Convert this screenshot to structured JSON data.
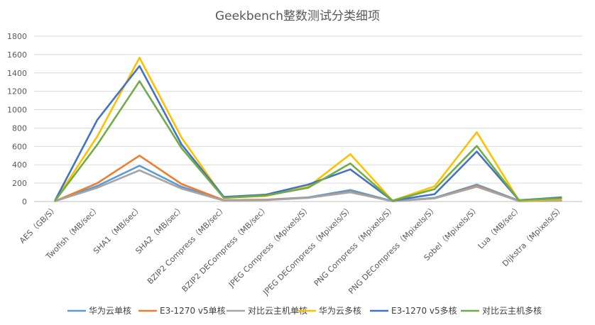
{
  "chart_data": {
    "type": "line",
    "title": "Geekbench整数测试分类细项",
    "categories": [
      "AES（GB/S）",
      "Twofish（MB/sec）",
      "SHA1（MB/sec）",
      "SHA2（MB/sec）",
      "BZIP2 Compress（MB/sec）",
      "BZIP2 DECompress（MB/sec）",
      "JPEG Compress（Mpixels/S）",
      "JPEG DECompress（Mpixels/S）",
      "PNG Compress（Mpixels/S）",
      "PNG DECompress（Mpixels/S）",
      "Sobel（Mpixels/S）",
      "Lua（MB/sec）",
      "Dijkstra（Mpixels/S）"
    ],
    "ylim": [
      0,
      1800
    ],
    "yticks": [
      0,
      200,
      400,
      600,
      800,
      1000,
      1200,
      1400,
      1600,
      1800
    ],
    "grid": true,
    "legend_position": "bottom",
    "series": [
      {
        "name": "华为云单核",
        "color": "#5b9bd5",
        "values": [
          5,
          170,
          390,
          160,
          15,
          20,
          45,
          125,
          5,
          40,
          185,
          10,
          30
        ]
      },
      {
        "name": "E3-1270 v5单核",
        "color": "#ed7d31",
        "values": [
          5,
          200,
          500,
          190,
          15,
          20,
          40,
          105,
          3,
          35,
          170,
          5,
          10
        ]
      },
      {
        "name": "对比云主机单核",
        "color": "#a5a5a5",
        "values": [
          5,
          150,
          340,
          140,
          10,
          15,
          40,
          100,
          3,
          35,
          160,
          5,
          10
        ]
      },
      {
        "name": "华为云多核",
        "color": "#ffc000",
        "values": [
          10,
          710,
          1565,
          695,
          40,
          60,
          160,
          515,
          10,
          165,
          755,
          10,
          25
        ]
      },
      {
        "name": "E3-1270 v5多核",
        "color": "#4472c4",
        "values": [
          15,
          890,
          1475,
          620,
          50,
          75,
          185,
          350,
          10,
          80,
          545,
          15,
          45
        ]
      },
      {
        "name": "对比云主机多核",
        "color": "#70ad47",
        "values": [
          10,
          620,
          1310,
          580,
          40,
          65,
          150,
          415,
          10,
          135,
          605,
          15,
          35
        ]
      }
    ]
  }
}
